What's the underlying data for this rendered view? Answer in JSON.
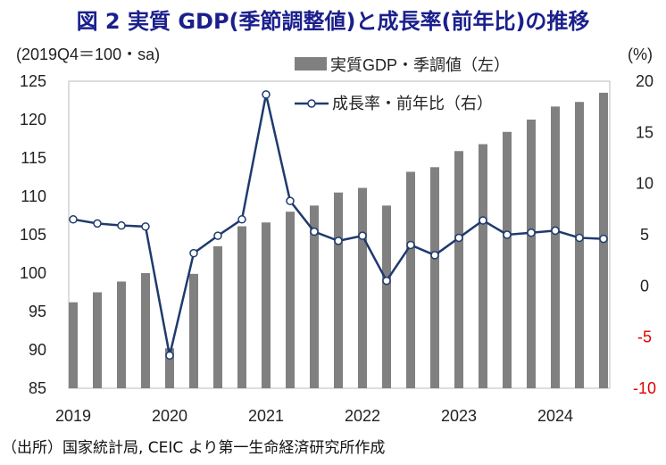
{
  "title": "図 2  実質 GDP(季節調整値)と成長率(前年比)の推移",
  "source": "（出所）国家統計局, CEIC より第一生命経済研究所作成",
  "chart_data": {
    "type": "bar+line",
    "left_axis_label": "(2019Q4＝100・sa)",
    "right_axis_label": "(%)",
    "left_ylim": [
      85,
      125
    ],
    "left_ticks": [
      "125",
      "120",
      "115",
      "110",
      "105",
      "100",
      "95",
      "90",
      "85"
    ],
    "right_ylim": [
      -10,
      20
    ],
    "right_ticks": [
      "20",
      "15",
      "10",
      "5",
      "0",
      "-5",
      "-10"
    ],
    "x_tick_labels": [
      "2019",
      "2020",
      "2021",
      "2022",
      "2023",
      "2024"
    ],
    "categories": [
      "2019Q1",
      "2019Q2",
      "2019Q3",
      "2019Q4",
      "2020Q1",
      "2020Q2",
      "2020Q3",
      "2020Q4",
      "2021Q1",
      "2021Q2",
      "2021Q3",
      "2021Q4",
      "2022Q1",
      "2022Q2",
      "2022Q3",
      "2022Q4",
      "2023Q1",
      "2023Q2",
      "2023Q3",
      "2023Q4",
      "2024Q1",
      "2024Q2",
      "2024Q3"
    ],
    "series": [
      {
        "name": "実質GDP・季調値（左）",
        "type": "bar",
        "axis": "left",
        "color": "#808080",
        "values": [
          96.2,
          97.5,
          98.9,
          100.0,
          90.2,
          99.9,
          103.5,
          106.1,
          106.6,
          108.0,
          108.8,
          110.5,
          111.1,
          108.8,
          113.2,
          113.8,
          115.9,
          116.8,
          118.4,
          120.0,
          121.7,
          122.3,
          123.5
        ]
      },
      {
        "name": "成長率・前年比（右）",
        "type": "line",
        "axis": "right",
        "color": "#1f3a6e",
        "values": [
          6.5,
          6.1,
          5.9,
          5.8,
          -6.8,
          3.2,
          4.9,
          6.5,
          18.7,
          8.3,
          5.3,
          4.4,
          4.9,
          0.5,
          4.0,
          3.0,
          4.7,
          6.4,
          5.0,
          5.2,
          5.4,
          4.7,
          4.6
        ]
      }
    ],
    "grid": false,
    "legend_position": "top-center"
  }
}
